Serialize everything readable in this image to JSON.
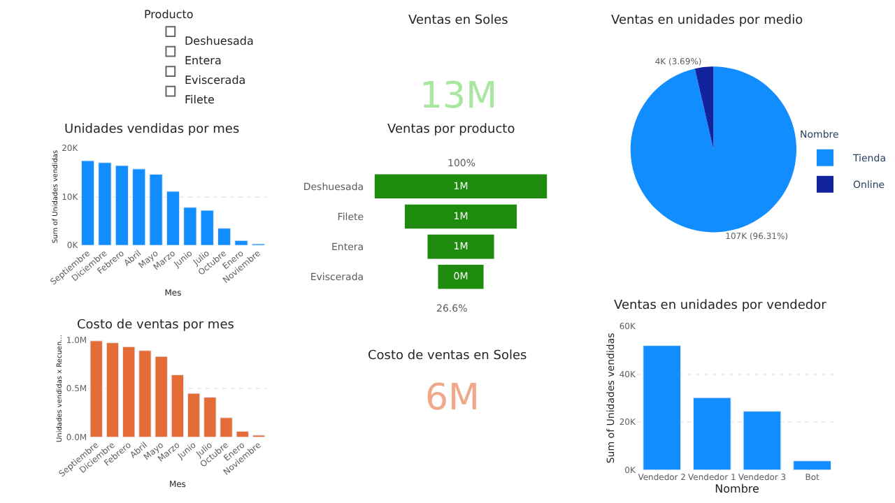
{
  "chart_data": [
    {
      "type": "other",
      "title": "Producto",
      "annotations": [
        "Deshuesada",
        "Entera",
        "Eviscerada",
        "Filete"
      ]
    },
    {
      "type": "other",
      "title": "Ventas en Soles",
      "annotations": [
        "13M"
      ]
    },
    {
      "type": "pie",
      "title": "Ventas en unidades por medio",
      "legend_title": "Nombre",
      "legend": "right",
      "categories": [
        "Tienda",
        "Online"
      ],
      "values": [
        107000,
        4000
      ],
      "value_labels": [
        "107K (96.31%)",
        "4K (3.69%)"
      ],
      "colors": [
        "#118dff",
        "#12239e"
      ]
    },
    {
      "type": "bar",
      "title": "Unidades vendidas por mes",
      "xlabel": "Mes",
      "ylabel": "Sum of Unidades vendidas",
      "categories": [
        "Septiembre",
        "Diciembre",
        "Febrero",
        "Abril",
        "Mayo",
        "Marzo",
        "Junio",
        "Julio",
        "Octubre",
        "Enero",
        "Noviembre"
      ],
      "values": [
        17400,
        17000,
        16400,
        15700,
        14600,
        11100,
        7800,
        7200,
        3500,
        1000,
        300
      ],
      "color": "#118dff",
      "ylim": [
        0,
        20000
      ],
      "yticks": [
        {
          "value": 0,
          "label": "0K"
        },
        {
          "value": 10000,
          "label": "10K"
        },
        {
          "value": 20000,
          "label": "20K"
        }
      ],
      "grid": "y"
    },
    {
      "type": "other",
      "title": "Ventas por producto",
      "categories": [
        "Deshuesada",
        "Filete",
        "Entera",
        "Eviscerada"
      ],
      "values": [
        1.4,
        0.91,
        0.54,
        0.37
      ],
      "value_labels": [
        "1M",
        "1M",
        "1M",
        "0M"
      ],
      "color": "#1e8a0e",
      "annotations": [
        "100%",
        "26.6%"
      ]
    },
    {
      "type": "bar",
      "title": "Costo de ventas por mes",
      "xlabel": "Mes",
      "ylabel": "Unidades vendidas x Recuen...",
      "categories": [
        "Septiembre",
        "Diciembre",
        "Febrero",
        "Abril",
        "Mayo",
        "Marzo",
        "Junio",
        "Julio",
        "Octubre",
        "Enero",
        "Noviembre"
      ],
      "values": [
        990000,
        970000,
        930000,
        890000,
        830000,
        640000,
        450000,
        410000,
        200000,
        60000,
        20000
      ],
      "color": "#e66c37",
      "ylim": [
        0,
        1000000
      ],
      "yticks": [
        {
          "value": 0,
          "label": "0.0M"
        },
        {
          "value": 500000,
          "label": "0.5M"
        },
        {
          "value": 1000000,
          "label": "1.0M"
        }
      ],
      "grid": "y"
    },
    {
      "type": "other",
      "title": "Costo de ventas en Soles",
      "annotations": [
        "6M"
      ]
    },
    {
      "type": "bar",
      "title": "Ventas en unidades por vendedor",
      "xlabel": "Nombre",
      "ylabel": "Sum of Unidades vendidas",
      "categories": [
        "Vendedor 2",
        "Vendedor 1",
        "Vendedor 3",
        "Bot"
      ],
      "values": [
        51900,
        30200,
        24500,
        3800
      ],
      "color": "#118dff",
      "ylim": [
        0,
        60000
      ],
      "yticks": [
        {
          "value": 0,
          "label": "0K"
        },
        {
          "value": 20000,
          "label": "20K"
        },
        {
          "value": 40000,
          "label": "40K"
        },
        {
          "value": 60000,
          "label": "60K"
        }
      ],
      "grid": "y"
    }
  ]
}
